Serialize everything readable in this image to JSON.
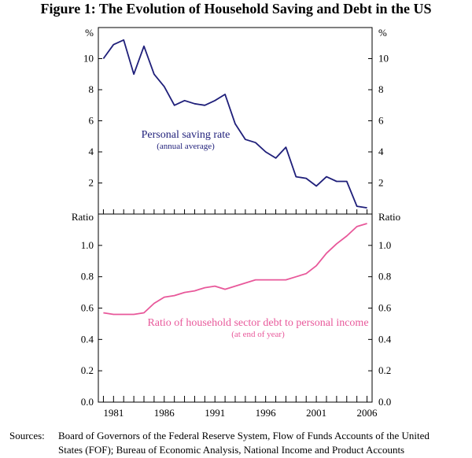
{
  "figure_title": "Figure 1: The Evolution of Household Saving and Debt in the US",
  "sources_label": "Sources:",
  "sources_line1": "Board of Governors of the Federal Reserve System, Flow of Funds Accounts of the United",
  "sources_line2": "States (FOF); Bureau of Economic Analysis, National Income and Product Accounts",
  "chart_data": [
    {
      "type": "line",
      "title": "Personal saving rate",
      "subtitle": "(annual average)",
      "unit_label": "%",
      "ylim": [
        0,
        12
      ],
      "yticks": [
        2,
        4,
        6,
        8,
        10
      ],
      "color": "#1f1f7a",
      "x": [
        1980,
        1981,
        1982,
        1983,
        1984,
        1985,
        1986,
        1987,
        1988,
        1989,
        1990,
        1991,
        1992,
        1993,
        1994,
        1995,
        1996,
        1997,
        1998,
        1999,
        2000,
        2001,
        2002,
        2003,
        2004,
        2005,
        2006
      ],
      "values": [
        10.0,
        10.9,
        11.2,
        9.0,
        10.8,
        9.0,
        8.2,
        7.0,
        7.3,
        7.1,
        7.0,
        7.3,
        7.7,
        5.8,
        4.8,
        4.6,
        4.0,
        3.6,
        4.3,
        2.4,
        2.3,
        1.8,
        2.4,
        2.1,
        2.1,
        0.5,
        0.4
      ]
    },
    {
      "type": "line",
      "title": "Ratio of household sector debt to personal income",
      "subtitle": "(at end of year)",
      "unit_label": "Ratio",
      "ylim": [
        0,
        1.2
      ],
      "yticks": [
        "0.0",
        "0.2",
        "0.4",
        "0.6",
        "0.8",
        "1.0"
      ],
      "color": "#e8589a",
      "x": [
        1980,
        1981,
        1982,
        1983,
        1984,
        1985,
        1986,
        1987,
        1988,
        1989,
        1990,
        1991,
        1992,
        1993,
        1994,
        1995,
        1996,
        1997,
        1998,
        1999,
        2000,
        2001,
        2002,
        2003,
        2004,
        2005,
        2006
      ],
      "values": [
        0.57,
        0.56,
        0.56,
        0.56,
        0.57,
        0.63,
        0.67,
        0.68,
        0.7,
        0.71,
        0.73,
        0.74,
        0.72,
        0.74,
        0.76,
        0.78,
        0.78,
        0.78,
        0.78,
        0.8,
        0.82,
        0.87,
        0.95,
        1.01,
        1.06,
        1.12,
        1.14
      ]
    }
  ],
  "x_axis": {
    "xlim": [
      1979.5,
      2006.5
    ],
    "tick_labels": [
      {
        "value": 1981,
        "label": "1981"
      },
      {
        "value": 1986,
        "label": "1986"
      },
      {
        "value": 1991,
        "label": "1991"
      },
      {
        "value": 1996,
        "label": "1996"
      },
      {
        "value": 2001,
        "label": "2001"
      },
      {
        "value": 2006,
        "label": "2006"
      }
    ],
    "minor_ticks": [
      1980,
      1981,
      1982,
      1983,
      1984,
      1985,
      1986,
      1987,
      1988,
      1989,
      1990,
      1991,
      1992,
      1993,
      1994,
      1995,
      1996,
      1997,
      1998,
      1999,
      2000,
      2001,
      2002,
      2003,
      2004,
      2005,
      2006
    ]
  }
}
